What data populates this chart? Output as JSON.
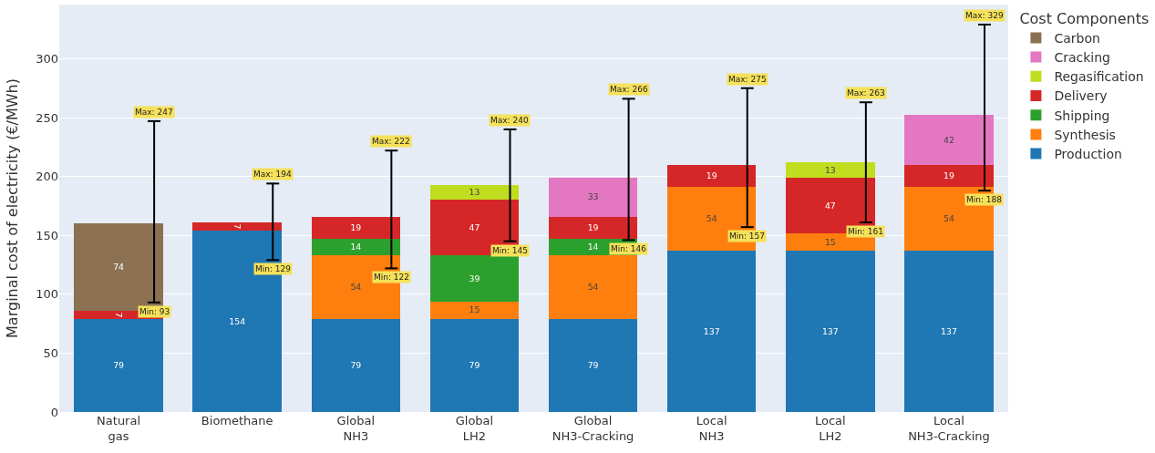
{
  "chart_data": {
    "type": "bar",
    "stacked": true,
    "ylabel": "Marginal cost of electricity (€/MWh)",
    "legend_title": "Cost Components",
    "categories": [
      "Natural\ngas",
      "Biomethane",
      "Global\nNH3",
      "Global\nLH2",
      "Global\nNH3-Cracking",
      "Local\nNH3",
      "Local\nLH2",
      "Local\nNH3-Cracking"
    ],
    "series": [
      {
        "name": "Production",
        "color": "#1f77b4",
        "values": [
          79,
          154,
          79,
          79,
          79,
          137,
          137,
          137
        ],
        "errors": [
          [
            93,
            247
          ],
          [
            129,
            194
          ],
          [
            122,
            222
          ],
          [
            145,
            240
          ],
          [
            146,
            266
          ],
          [
            157,
            275
          ],
          [
            161,
            263
          ],
          [
            188,
            329
          ]
        ]
      },
      {
        "name": "Synthesis",
        "color": "#ff7f0e",
        "values": [
          null,
          null,
          54,
          15,
          54,
          54,
          15,
          54
        ]
      },
      {
        "name": "Shipping",
        "color": "#2ca02c",
        "values": [
          null,
          null,
          14,
          39,
          14,
          null,
          null,
          null
        ]
      },
      {
        "name": "Delivery",
        "color": "#d62728",
        "values": [
          7,
          7,
          19,
          47,
          19,
          19,
          47,
          19
        ]
      },
      {
        "name": "Regasification",
        "color": "#c0dd1f",
        "values": [
          null,
          null,
          null,
          13,
          null,
          null,
          13,
          null
        ]
      },
      {
        "name": "Cracking",
        "color": "#e377c2",
        "values": [
          null,
          null,
          null,
          null,
          33,
          null,
          null,
          42
        ]
      },
      {
        "name": "Carbon",
        "color": "#8b7152",
        "values": [
          74,
          null,
          null,
          null,
          null,
          null,
          null,
          null
        ]
      }
    ],
    "annotations": [
      "Max: 247",
      "Min: 93",
      "Max: 194",
      "Min: 129",
      "Max: 222",
      "Min: 122",
      "Max: 240",
      "Min: 145",
      "Max: 266",
      "Min: 146",
      "Max: 275",
      "Min: 157",
      "Max: 263",
      "Min: 161",
      "Max: 329",
      "Min: 188"
    ],
    "ylim": [
      0,
      346
    ],
    "yticks": [
      0,
      50,
      100,
      150,
      200,
      250,
      300
    ],
    "data_labels": true,
    "grid": "y",
    "legend": "top right"
  }
}
